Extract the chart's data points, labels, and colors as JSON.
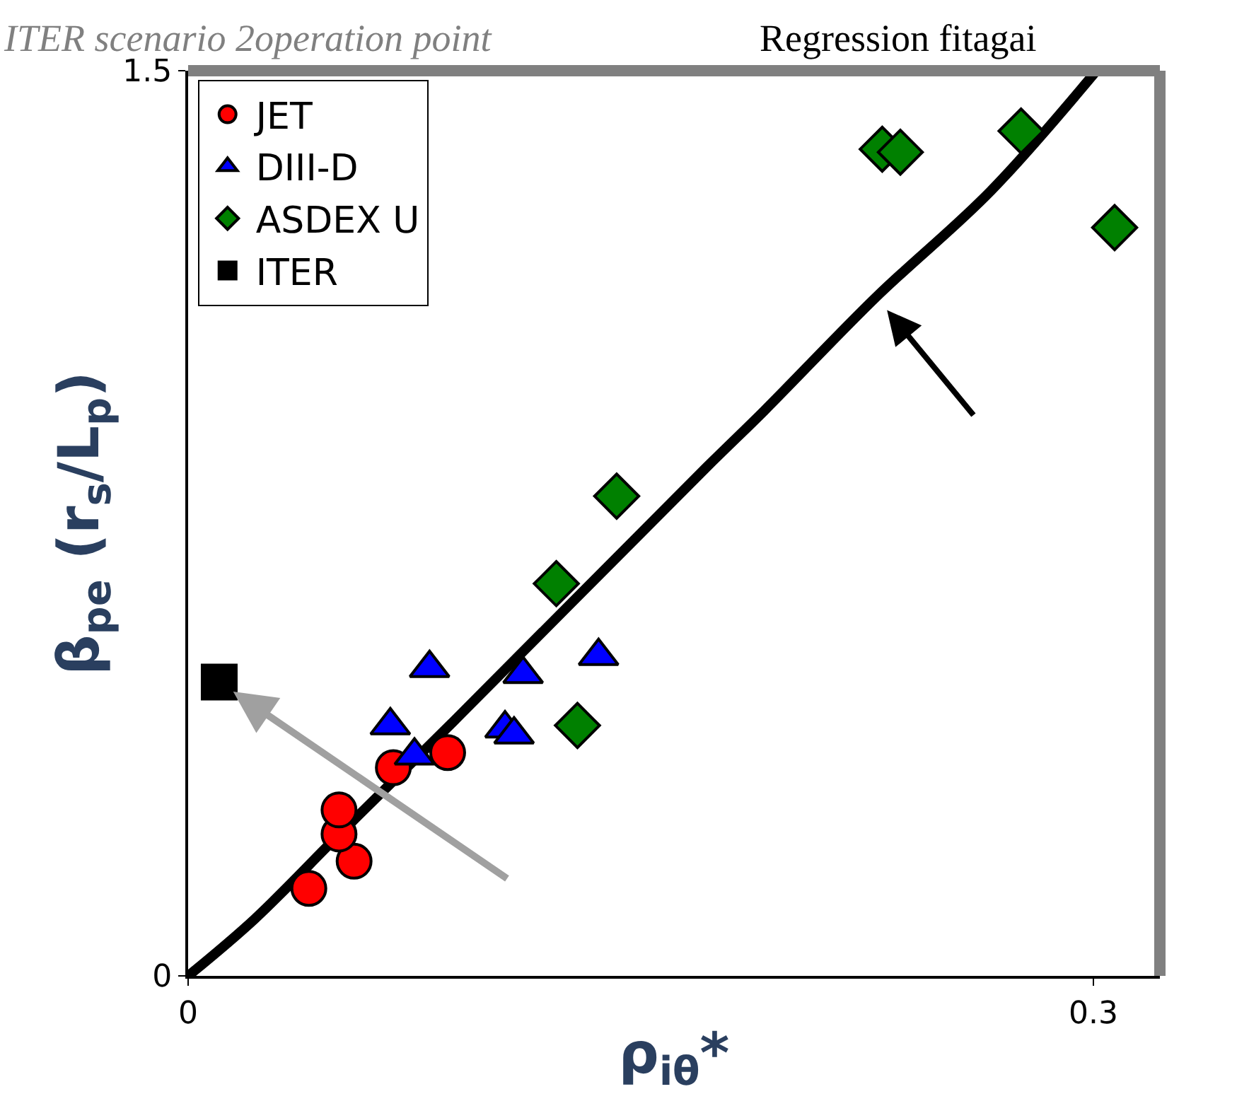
{
  "chart_data": {
    "type": "scatter",
    "annotations": [
      "ITER scenario 2operation point",
      "Regression fitagai"
    ],
    "xlabel": "ρ$_{iθ}$*",
    "ylabel": "β$_{pe}$ (r$_{s}$/L$_{p}$)",
    "xlim": [
      0,
      0.322
    ],
    "ylim": [
      0,
      1.5
    ],
    "xticks": [
      0,
      0.3
    ],
    "yticks": [
      0,
      1.5
    ],
    "legend": "top left",
    "series": [
      {
        "name": "JET",
        "color": "#ff0000",
        "marker": "circle",
        "x": [
          0.04,
          0.055,
          0.05,
          0.05,
          0.068,
          0.086
        ],
        "values": [
          0.145,
          0.19,
          0.235,
          0.275,
          0.345,
          0.37
        ]
      },
      {
        "name": "DIII-D",
        "color": "#0000ff",
        "marker": "triangle",
        "x": [
          0.08,
          0.067,
          0.075,
          0.111,
          0.105,
          0.108,
          0.136
        ],
        "values": [
          0.51,
          0.415,
          0.365,
          0.5,
          0.41,
          0.4,
          0.53
        ]
      },
      {
        "name": "ASDEX U",
        "color": "#008000",
        "marker": "diamond",
        "x": [
          0.129,
          0.142,
          0.122,
          0.23,
          0.236,
          0.276,
          0.307
        ],
        "values": [
          0.415,
          0.795,
          0.65,
          1.37,
          1.365,
          1.4,
          1.24
        ]
      },
      {
        "name": "ITER",
        "color": "#000000",
        "marker": "square",
        "x": [
          0.0103
        ],
        "values": [
          0.487
        ]
      },
      {
        "type": "line",
        "color": "#000000",
        "marker": "none",
        "x": [
          0,
          0.022,
          0.05,
          0.088,
          0.172,
          0.191,
          0.228,
          0.266,
          0.301
        ],
        "values": [
          0,
          0.094,
          0.234,
          0.422,
          0.844,
          0.937,
          1.125,
          1.301,
          1.5
        ]
      }
    ]
  }
}
